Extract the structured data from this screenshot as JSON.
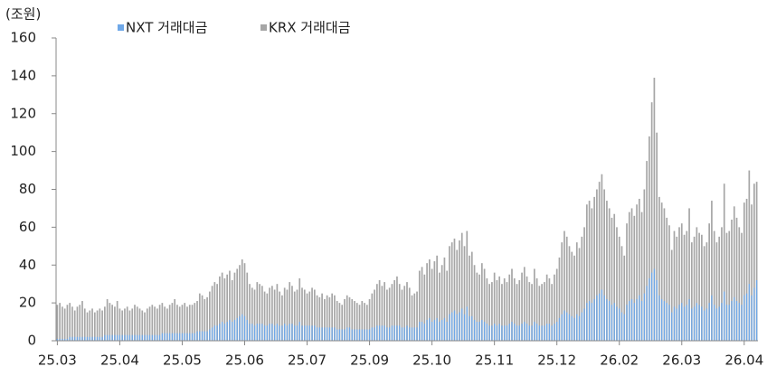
{
  "chart_data": {
    "type": "bar",
    "y_label": "(조원)",
    "ylim": [
      0,
      160
    ],
    "yticks": [
      0,
      20,
      40,
      60,
      80,
      100,
      120,
      140,
      160
    ],
    "categories": [
      "25.03",
      null,
      null,
      null,
      null,
      null,
      null,
      null,
      null,
      null,
      null,
      null,
      null,
      null,
      null,
      null,
      null,
      null,
      null,
      null,
      null,
      null,
      null,
      null,
      null,
      "25.04",
      null,
      null,
      null,
      null,
      null,
      null,
      null,
      null,
      null,
      null,
      null,
      null,
      null,
      null,
      null,
      null,
      null,
      null,
      null,
      null,
      null,
      null,
      null,
      null,
      "25.05",
      null,
      null,
      null,
      null,
      null,
      null,
      null,
      null,
      null,
      null,
      null,
      null,
      null,
      null,
      null,
      null,
      null,
      null,
      null,
      null,
      null,
      null,
      null,
      null,
      "25.06",
      null,
      null,
      null,
      null,
      null,
      null,
      null,
      null,
      null,
      null,
      null,
      null,
      null,
      null,
      null,
      null,
      null,
      null,
      null,
      null,
      null,
      null,
      null,
      null,
      "25.07",
      null,
      null,
      null,
      null,
      null,
      null,
      null,
      null,
      null,
      null,
      null,
      null,
      null,
      null,
      null,
      null,
      null,
      null,
      null,
      null,
      null,
      null,
      null,
      null,
      "25.09",
      null,
      null,
      null,
      null,
      null,
      null,
      null,
      null,
      null,
      null,
      null,
      null,
      null,
      null,
      null,
      null,
      null,
      null,
      null,
      null,
      null,
      null,
      null,
      null,
      "25.10",
      null,
      null,
      null,
      null,
      null,
      null,
      null,
      null,
      null,
      null,
      null,
      null,
      null,
      null,
      null,
      null,
      null,
      null,
      null,
      null,
      null,
      null,
      null,
      null,
      "25.11",
      null,
      null,
      null,
      null,
      null,
      null,
      null,
      null,
      null,
      null,
      null,
      null,
      null,
      null,
      null,
      null,
      null,
      null,
      null,
      null,
      null,
      null,
      null,
      null,
      "25.12",
      null,
      null,
      null,
      null,
      null,
      null,
      null,
      null,
      null,
      null,
      null,
      null,
      null,
      null,
      null,
      null,
      null,
      null,
      null,
      null,
      null,
      null,
      null,
      null,
      "26.02",
      null,
      null,
      null,
      null,
      null,
      null,
      null,
      null,
      null,
      null,
      null,
      null,
      null,
      null,
      null,
      null,
      null,
      null,
      null,
      null,
      null,
      null,
      null,
      null,
      "26.03",
      null,
      null,
      null,
      null,
      null,
      null,
      null,
      null,
      null,
      null,
      null,
      null,
      null,
      null,
      null,
      null,
      null,
      null,
      null,
      null,
      null,
      null,
      null,
      null,
      "26.04",
      null,
      null,
      null,
      null,
      null
    ],
    "series": [
      {
        "name": "NXT 거래대금",
        "color": "#6fa8e8",
        "values": [
          1,
          1,
          1,
          1,
          1,
          2,
          2,
          2,
          2,
          2,
          2,
          2,
          2,
          2,
          2,
          2,
          2,
          2,
          2,
          3,
          3,
          3,
          3,
          3,
          3,
          3,
          3,
          3,
          3,
          3,
          3,
          3,
          3,
          3,
          3,
          3,
          3,
          3,
          3,
          3,
          3,
          3,
          4,
          4,
          4,
          4,
          4,
          4,
          4,
          4,
          4,
          4,
          4,
          4,
          4,
          4,
          5,
          5,
          5,
          5,
          5,
          6,
          7,
          8,
          8,
          9,
          10,
          9,
          10,
          11,
          10,
          11,
          12,
          13,
          14,
          13,
          11,
          9,
          9,
          8,
          9,
          9,
          9,
          8,
          8,
          9,
          9,
          8,
          9,
          8,
          8,
          9,
          8,
          9,
          9,
          8,
          8,
          10,
          8,
          8,
          8,
          8,
          8,
          8,
          7,
          7,
          7,
          7,
          7,
          7,
          7,
          7,
          6,
          6,
          6,
          6,
          7,
          7,
          6,
          6,
          6,
          6,
          6,
          6,
          6,
          6,
          7,
          7,
          8,
          8,
          8,
          8,
          7,
          7,
          8,
          8,
          8,
          8,
          7,
          7,
          8,
          7,
          7,
          7,
          7,
          10,
          10,
          9,
          11,
          12,
          10,
          11,
          12,
          10,
          11,
          12,
          10,
          14,
          15,
          16,
          14,
          15,
          17,
          14,
          18,
          13,
          13,
          11,
          10,
          10,
          11,
          10,
          9,
          8,
          8,
          9,
          8,
          9,
          8,
          8,
          8,
          9,
          10,
          9,
          8,
          8,
          9,
          10,
          9,
          8,
          8,
          10,
          9,
          8,
          8,
          8,
          9,
          9,
          8,
          9,
          10,
          12,
          14,
          16,
          15,
          14,
          13,
          12,
          14,
          13,
          15,
          17,
          20,
          21,
          20,
          22,
          24,
          25,
          27,
          24,
          22,
          21,
          19,
          20,
          18,
          17,
          15,
          14,
          19,
          21,
          22,
          20,
          22,
          24,
          21,
          25,
          29,
          33,
          36,
          38,
          32,
          24,
          22,
          21,
          20,
          19,
          15,
          18,
          17,
          19,
          20,
          18,
          19,
          22,
          17,
          18,
          20,
          19,
          18,
          16,
          17,
          20,
          24,
          19,
          17,
          18,
          20,
          26,
          19,
          19,
          21,
          23,
          21,
          20,
          19,
          24,
          25,
          30,
          24,
          28,
          32
        ]
      },
      {
        "name": "KRX 거래대금",
        "color": "#a6a6a6",
        "values": [
          19,
          20,
          18,
          17,
          19,
          20,
          18,
          16,
          18,
          19,
          21,
          17,
          15,
          16,
          17,
          15,
          16,
          17,
          16,
          18,
          22,
          20,
          19,
          18,
          21,
          17,
          16,
          17,
          18,
          16,
          17,
          19,
          18,
          17,
          16,
          15,
          17,
          18,
          19,
          18,
          17,
          19,
          20,
          18,
          17,
          19,
          20,
          22,
          19,
          18,
          19,
          20,
          18,
          19,
          19,
          20,
          21,
          25,
          24,
          22,
          23,
          26,
          29,
          31,
          30,
          34,
          36,
          33,
          35,
          37,
          32,
          36,
          38,
          40,
          43,
          41,
          36,
          30,
          28,
          27,
          31,
          30,
          29,
          26,
          25,
          28,
          29,
          27,
          30,
          26,
          24,
          28,
          27,
          31,
          29,
          26,
          27,
          33,
          28,
          27,
          25,
          26,
          28,
          27,
          24,
          23,
          25,
          22,
          24,
          23,
          25,
          24,
          21,
          20,
          19,
          22,
          24,
          23,
          22,
          21,
          20,
          19,
          21,
          20,
          19,
          22,
          25,
          27,
          30,
          32,
          29,
          31,
          27,
          28,
          30,
          32,
          34,
          30,
          27,
          29,
          31,
          28,
          24,
          25,
          26,
          37,
          39,
          35,
          41,
          43,
          38,
          42,
          45,
          36,
          40,
          44,
          37,
          50,
          52,
          54,
          48,
          53,
          57,
          50,
          58,
          45,
          47,
          40,
          36,
          35,
          41,
          38,
          33,
          30,
          31,
          36,
          32,
          34,
          30,
          33,
          31,
          35,
          38,
          33,
          30,
          32,
          36,
          39,
          34,
          31,
          30,
          38,
          33,
          29,
          30,
          31,
          35,
          33,
          30,
          35,
          38,
          44,
          52,
          58,
          55,
          50,
          47,
          45,
          52,
          49,
          55,
          60,
          72,
          74,
          70,
          76,
          80,
          84,
          88,
          80,
          74,
          70,
          65,
          67,
          60,
          55,
          50,
          45,
          62,
          68,
          70,
          66,
          72,
          75,
          68,
          80,
          95,
          108,
          126,
          139,
          110,
          76,
          73,
          70,
          65,
          61,
          48,
          58,
          55,
          60,
          62,
          56,
          58,
          70,
          52,
          55,
          60,
          57,
          56,
          50,
          52,
          62,
          74,
          58,
          52,
          55,
          60,
          83,
          57,
          58,
          64,
          71,
          65,
          60,
          57,
          73,
          75,
          90,
          72,
          83,
          84
        ]
      }
    ]
  }
}
